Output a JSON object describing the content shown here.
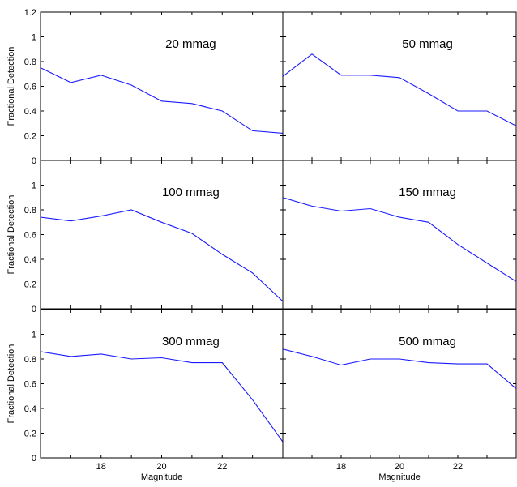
{
  "chart_data": [
    {
      "type": "line",
      "annotation": "20 mmag",
      "ylabel": "Fractional Detection",
      "xlabel": "",
      "xlim": [
        16,
        24
      ],
      "ylim": [
        0,
        1.2
      ],
      "x": [
        16,
        17,
        18,
        19,
        20,
        21,
        22,
        23,
        24
      ],
      "y": [
        0.75,
        0.63,
        0.69,
        0.61,
        0.48,
        0.46,
        0.4,
        0.24,
        0.22
      ],
      "yticks": [
        "0",
        "0.2",
        "0.4",
        "0.6",
        "0.8",
        "1",
        "1.2"
      ],
      "xticks": []
    },
    {
      "type": "line",
      "annotation": "50 mmag",
      "ylabel": "",
      "xlabel": "",
      "xlim": [
        16,
        24
      ],
      "ylim": [
        0,
        1.2
      ],
      "x": [
        16,
        17,
        18,
        19,
        20,
        21,
        22,
        23,
        24
      ],
      "y": [
        0.68,
        0.86,
        0.69,
        0.69,
        0.67,
        0.54,
        0.4,
        0.4,
        0.28
      ],
      "yticks": [],
      "xticks": []
    },
    {
      "type": "line",
      "annotation": "100 mmag",
      "ylabel": "Fractional Detection",
      "xlabel": "",
      "xlim": [
        16,
        24
      ],
      "ylim": [
        0,
        1.2
      ],
      "x": [
        16,
        17,
        18,
        19,
        20,
        21,
        22,
        23,
        24
      ],
      "y": [
        0.74,
        0.71,
        0.75,
        0.8,
        0.7,
        0.61,
        0.44,
        0.29,
        0.06
      ],
      "yticks": [
        "0",
        "0.2",
        "0.4",
        "0.6",
        "0.8",
        "1"
      ],
      "xticks": []
    },
    {
      "type": "line",
      "annotation": "150 mmag",
      "ylabel": "",
      "xlabel": "",
      "xlim": [
        16,
        24
      ],
      "ylim": [
        0,
        1.2
      ],
      "x": [
        16,
        17,
        18,
        19,
        20,
        21,
        22,
        23,
        24
      ],
      "y": [
        0.9,
        0.83,
        0.79,
        0.81,
        0.74,
        0.7,
        0.52,
        0.37,
        0.22
      ],
      "yticks": [],
      "xticks": []
    },
    {
      "type": "line",
      "annotation": "300 mmag",
      "ylabel": "Fractional Detection",
      "xlabel": "Magnitude",
      "xlim": [
        16,
        24
      ],
      "ylim": [
        0,
        1.2
      ],
      "x": [
        16,
        17,
        18,
        19,
        20,
        21,
        22,
        23,
        24
      ],
      "y": [
        0.86,
        0.82,
        0.84,
        0.8,
        0.81,
        0.77,
        0.77,
        0.47,
        0.13
      ],
      "yticks": [
        "0",
        "0.2",
        "0.4",
        "0.6",
        "0.8",
        "1"
      ],
      "xticks": [
        "18",
        "20",
        "22"
      ]
    },
    {
      "type": "line",
      "annotation": "500 mmag",
      "ylabel": "",
      "xlabel": "Magnitude",
      "xlim": [
        16,
        24
      ],
      "ylim": [
        0,
        1.2
      ],
      "x": [
        16,
        17,
        18,
        19,
        20,
        21,
        22,
        23,
        24
      ],
      "y": [
        0.88,
        0.82,
        0.75,
        0.8,
        0.8,
        0.77,
        0.76,
        0.76,
        0.56
      ],
      "yticks": [],
      "xticks": [
        "18",
        "20",
        "22"
      ]
    }
  ],
  "colors": {
    "line": "#1a1aff",
    "frame": "#000000",
    "background": "#ffffff"
  }
}
